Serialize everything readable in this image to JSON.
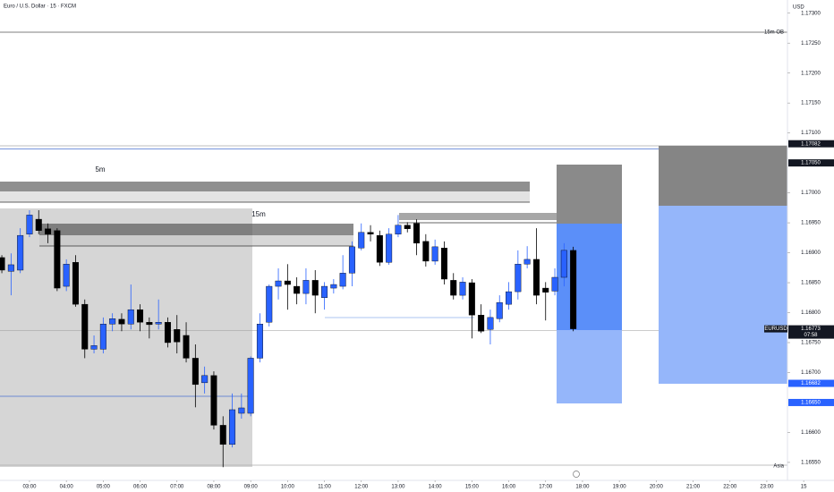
{
  "chart_data": {
    "type": "candlestick",
    "title": "Euro / U.S. Dollar · 15 · FXCM",
    "currency": "USD",
    "up_color": "#2962ff",
    "down_color": "#000000",
    "x": [
      2.25,
      2.5,
      2.75,
      3,
      3.25,
      3.5,
      3.75,
      4,
      4.25,
      4.5,
      4.75,
      5,
      5.25,
      5.5,
      5.75,
      6,
      6.25,
      6.5,
      6.75,
      7,
      7.25,
      7.5,
      7.75,
      8,
      8.25,
      8.5,
      8.75,
      9,
      9.25,
      9.5,
      9.75,
      10,
      10.25,
      10.5,
      10.75,
      11,
      11.25,
      11.5,
      11.75,
      12,
      12.25,
      12.5,
      12.75,
      13,
      13.25,
      13.5,
      13.75,
      14,
      14.25,
      14.5,
      14.75,
      15,
      15.25,
      15.5,
      15.75,
      16,
      16.25,
      16.5,
      16.75,
      17,
      17.25,
      17.5,
      17.75
    ],
    "open": [
      1.16892,
      1.16869,
      1.16871,
      1.16931,
      1.16956,
      1.1694,
      1.16937,
      1.16844,
      1.16884,
      1.16814,
      1.16739,
      1.16739,
      1.16781,
      1.16789,
      1.16781,
      1.16805,
      1.16784,
      1.16781,
      1.16784,
      1.16772,
      1.16762,
      1.16724,
      1.16683,
      1.16695,
      1.16612,
      1.1658,
      1.16632,
      1.16632,
      1.16724,
      1.16784,
      1.16844,
      1.16853,
      1.16844,
      1.16832,
      1.16854,
      1.16825,
      1.16841,
      1.16844,
      1.16866,
      1.16908,
      1.16934,
      1.16929,
      1.16884,
      1.16931,
      1.16946,
      1.16949,
      1.16919,
      1.16886,
      1.16908,
      1.16854,
      1.16829,
      1.1685,
      1.16796,
      1.16772,
      1.1679,
      1.16814,
      1.16835,
      1.16881,
      1.16889,
      1.16841,
      1.16836,
      1.16859,
      1.16904
    ],
    "high": [
      1.16896,
      1.16899,
      1.16941,
      1.16971,
      1.16971,
      1.16949,
      1.16941,
      1.16889,
      1.16896,
      1.16822,
      1.16762,
      1.16792,
      1.16799,
      1.16799,
      1.16847,
      1.16814,
      1.16792,
      1.16822,
      1.16792,
      1.16796,
      1.16784,
      1.16747,
      1.1671,
      1.16702,
      1.16627,
      1.16665,
      1.16665,
      1.16727,
      1.16799,
      1.16847,
      1.16874,
      1.16881,
      1.16859,
      1.16874,
      1.16871,
      1.16851,
      1.16856,
      1.16896,
      1.16919,
      1.16949,
      1.16946,
      1.16937,
      1.16941,
      1.16963,
      1.16951,
      1.16956,
      1.16931,
      1.16922,
      1.16919,
      1.16866,
      1.16859,
      1.16856,
      1.16814,
      1.16805,
      1.16829,
      1.16851,
      1.16904,
      1.16911,
      1.16941,
      1.16851,
      1.16874,
      1.16916,
      1.1691
    ],
    "low": [
      1.16866,
      1.16829,
      1.16866,
      1.16926,
      1.16931,
      1.16916,
      1.16836,
      1.16836,
      1.1681,
      1.16724,
      1.16732,
      1.16732,
      1.16769,
      1.16769,
      1.16772,
      1.16769,
      1.16757,
      1.16772,
      1.16742,
      1.16732,
      1.16717,
      1.16642,
      1.16665,
      1.16605,
      1.16542,
      1.16575,
      1.16623,
      1.16627,
      1.16717,
      1.16777,
      1.16822,
      1.16805,
      1.16814,
      1.16814,
      1.16799,
      1.16805,
      1.16832,
      1.16839,
      1.16844,
      1.16904,
      1.16919,
      1.16878,
      1.1688,
      1.16926,
      1.16934,
      1.16896,
      1.16877,
      1.1688,
      1.16847,
      1.16822,
      1.16822,
      1.16757,
      1.16766,
      1.16747,
      1.16784,
      1.16805,
      1.16822,
      1.16874,
      1.16814,
      1.16787,
      1.16829,
      1.16844,
      1.16769
    ],
    "close": [
      1.16871,
      1.1688,
      1.16929,
      1.16963,
      1.16937,
      1.16931,
      1.16841,
      1.16881,
      1.16814,
      1.16739,
      1.16745,
      1.16781,
      1.1679,
      1.16781,
      1.16805,
      1.16784,
      1.1678,
      1.16784,
      1.1675,
      1.16751,
      1.16724,
      1.1668,
      1.16695,
      1.16612,
      1.1658,
      1.16638,
      1.16641,
      1.16724,
      1.16781,
      1.16844,
      1.16853,
      1.16847,
      1.16832,
      1.16854,
      1.16829,
      1.16844,
      1.16847,
      1.16866,
      1.1691,
      1.16934,
      1.16931,
      1.16884,
      1.16931,
      1.16946,
      1.1694,
      1.16916,
      1.16886,
      1.1691,
      1.16856,
      1.16829,
      1.16851,
      1.16796,
      1.16769,
      1.16792,
      1.16817,
      1.16835,
      1.16881,
      1.16889,
      1.16829,
      1.16834,
      1.16859,
      1.16904,
      1.16773
    ],
    "xlim": [
      2.2,
      23.56
    ],
    "ylim": [
      1.1652,
      1.17322
    ],
    "xticks": [
      {
        "value": 3,
        "label": "03:00"
      },
      {
        "value": 4,
        "label": "04:00"
      },
      {
        "value": 5,
        "label": "05:00"
      },
      {
        "value": 6,
        "label": "06:00"
      },
      {
        "value": 7,
        "label": "07:00"
      },
      {
        "value": 8,
        "label": "08:00"
      },
      {
        "value": 9,
        "label": "09:00"
      },
      {
        "value": 10,
        "label": "10:00"
      },
      {
        "value": 11,
        "label": "11:00"
      },
      {
        "value": 12,
        "label": "12:00"
      },
      {
        "value": 13,
        "label": "13:00"
      },
      {
        "value": 14,
        "label": "14:00"
      },
      {
        "value": 15,
        "label": "15:00"
      },
      {
        "value": 16,
        "label": "16:00"
      },
      {
        "value": 17,
        "label": "17:00"
      },
      {
        "value": 18,
        "label": "18:00"
      },
      {
        "value": 19,
        "label": "19:00"
      },
      {
        "value": 20,
        "label": "20:00"
      },
      {
        "value": 21,
        "label": "21:00"
      },
      {
        "value": 22,
        "label": "22:00"
      },
      {
        "value": 23,
        "label": "23:00"
      },
      {
        "value": 24,
        "label": "15"
      }
    ],
    "yticks": [
      {
        "value": 1.173,
        "label": "1.17300"
      },
      {
        "value": 1.1725,
        "label": "1.17250"
      },
      {
        "value": 1.172,
        "label": "1.17200"
      },
      {
        "value": 1.1715,
        "label": "1.17150"
      },
      {
        "value": 1.171,
        "label": "1.17100"
      },
      {
        "value": 1.17,
        "label": "1.17000"
      },
      {
        "value": 1.1695,
        "label": "1.16950"
      },
      {
        "value": 1.169,
        "label": "1.16900"
      },
      {
        "value": 1.1685,
        "label": "1.16850"
      },
      {
        "value": 1.168,
        "label": "1.16800"
      },
      {
        "value": 1.1675,
        "label": "1.16750"
      },
      {
        "value": 1.167,
        "label": "1.16700"
      },
      {
        "value": 1.166,
        "label": "1.16600"
      },
      {
        "value": 1.1655,
        "label": "1.16550"
      }
    ],
    "price_labels": [
      {
        "value": 1.17082,
        "label": "1.17082",
        "color": "#131722"
      },
      {
        "value": 1.1705,
        "label": "1.17050",
        "color": "#131722"
      },
      {
        "value": 1.16682,
        "label": "1.16682",
        "color": "#2962ff"
      },
      {
        "value": 1.1665,
        "label": "1.16650",
        "color": "#2962ff"
      }
    ],
    "last_price": {
      "value": 1.16773,
      "label": "1.16773",
      "symbol": "EURUSD",
      "countdown": "07:58"
    },
    "annotations": {
      "ob_15m": "15m OB",
      "zone_5m": "5m",
      "zone_15m": "15m",
      "session": "Asia"
    }
  }
}
